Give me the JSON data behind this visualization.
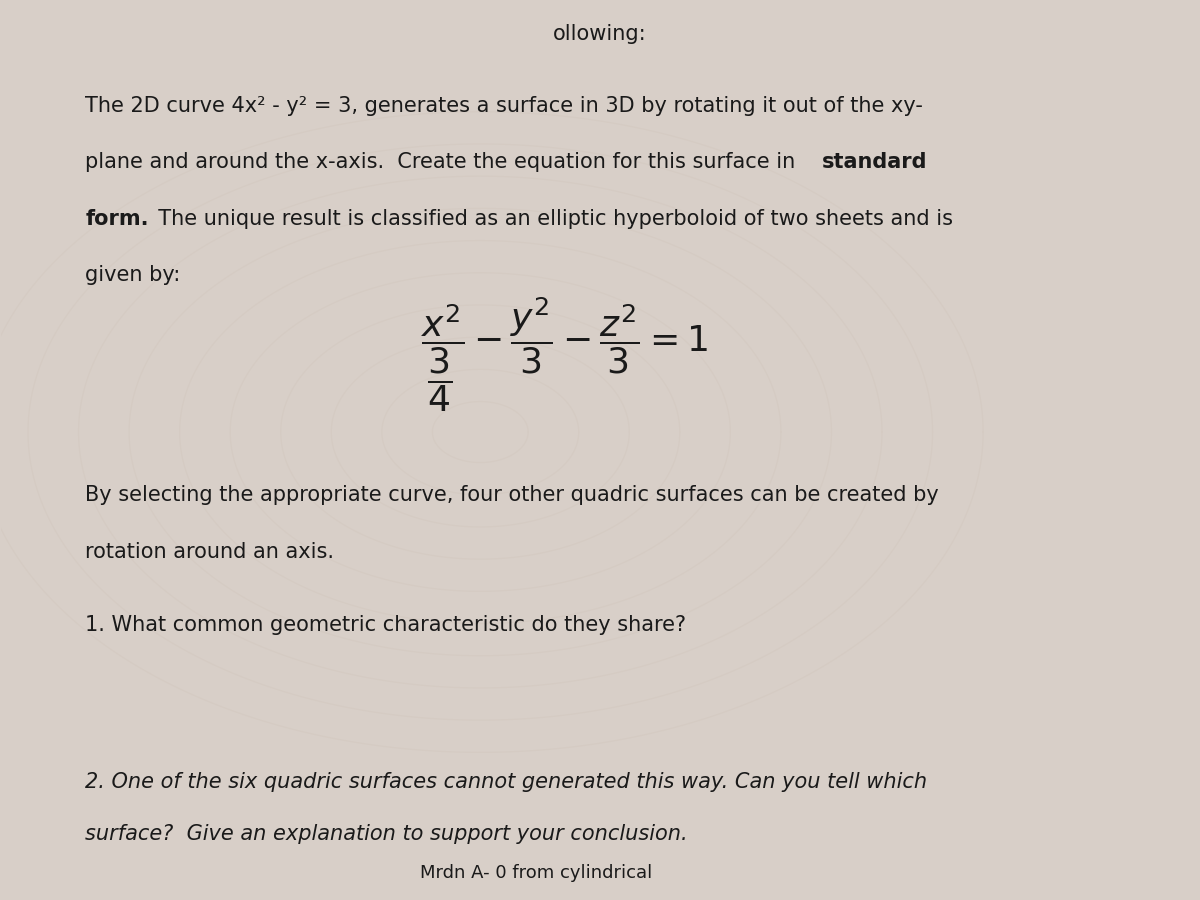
{
  "background_color": "#d8cfc8",
  "text_color": "#1a1a1a",
  "title_partial": "ollowing:",
  "paragraph1_line1": "The 2D curve 4x² - y² = 3, generates a surface in 3D by rotating it out of the xy-",
  "paragraph1_line2a": "plane and around the x-axis.  Create the equation for this surface in ",
  "paragraph1_line2b": "standard",
  "paragraph1_line3a": "form.",
  "paragraph1_line3b": "  The unique result is classified as an elliptic hyperboloid of two sheets and is",
  "paragraph1_line4": "given by:",
  "formula_latex": "\\dfrac{x^2}{\\frac{3}{4}} - \\dfrac{y^2}{3} - \\dfrac{z^2}{3} = 1",
  "paragraph2_line1": "By selecting the appropriate curve, four other quadric surfaces can be created by",
  "paragraph2_line2": "rotation around an axis.",
  "question1": "1. What common geometric characteristic do they share?",
  "question2_line1": "2. One of the six quadric surfaces cannot generated this way. Can you tell which",
  "question2_line2": "surface?  Give an explanation to support your conclusion.",
  "footer_partial": "Mrdn A- 0 from cylindrical",
  "font_size_body": 15,
  "font_size_formula": 26,
  "font_size_title": 15,
  "font_size_footer": 13
}
